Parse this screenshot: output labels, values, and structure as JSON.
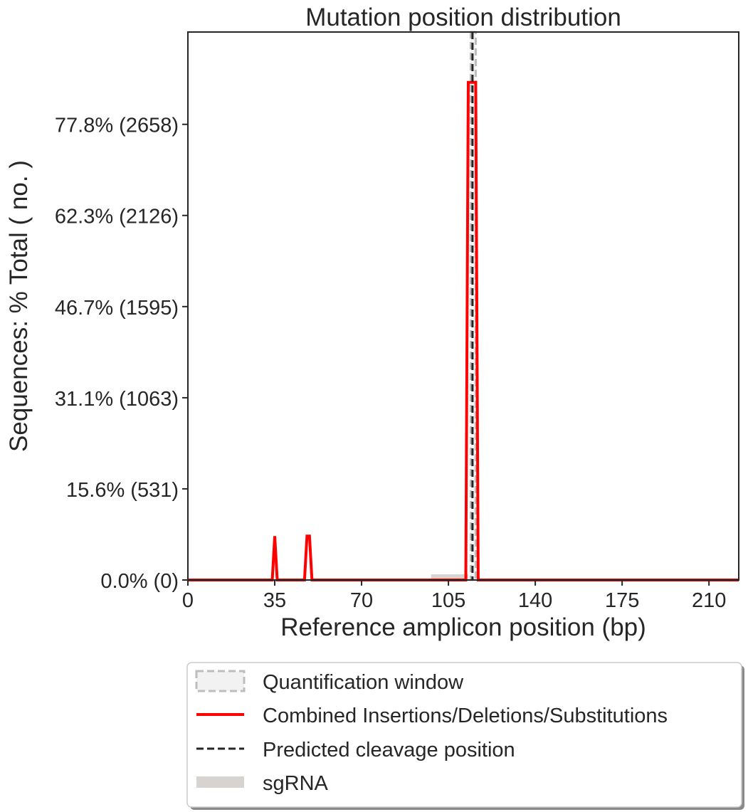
{
  "chart_data": {
    "type": "line",
    "title": "Mutation position distribution",
    "xlabel": "Reference amplicon position (bp)",
    "ylabel": "Sequences: % Total ( no. )",
    "xlim": [
      0,
      222
    ],
    "ylim": [
      0,
      93.6
    ],
    "x_ticks": [
      0,
      35,
      70,
      105,
      140,
      175,
      210
    ],
    "x_tick_labels": [
      "0",
      "35",
      "70",
      "105",
      "140",
      "175",
      "210"
    ],
    "y_ticks": [
      0,
      15.57,
      31.13,
      46.7,
      62.27,
      77.83
    ],
    "y_tick_labels": [
      "0.0% (0)",
      "15.6% (531)",
      "31.1% (1063)",
      "46.7% (1595)",
      "62.3% (2126)",
      "77.8% (2658)"
    ],
    "grid": false,
    "legend_position": "below plot",
    "series": [
      {
        "name": "Combined Insertions/Deletions/Substitutions",
        "color": "#ff0000",
        "points": [
          [
            0,
            0
          ],
          [
            34,
            0
          ],
          [
            35,
            7.5
          ],
          [
            36,
            0
          ],
          [
            47,
            0
          ],
          [
            48,
            7.5
          ],
          [
            49,
            7.5
          ],
          [
            50,
            0
          ],
          [
            112,
            0
          ],
          [
            113,
            85
          ],
          [
            116,
            85
          ],
          [
            117,
            0
          ],
          [
            222,
            0
          ]
        ]
      }
    ],
    "annotations": {
      "quantification_window": {
        "name": "Quantification window",
        "x": [
          114,
          116
        ]
      },
      "predicted_cleavage": {
        "name": "Predicted cleavage position",
        "x": 114.7
      },
      "sgrna": {
        "name": "sgRNA",
        "x": [
          98,
          113
        ]
      }
    },
    "legend": [
      {
        "key": "quant",
        "label": "Quantification window"
      },
      {
        "key": "combined",
        "label": "Combined Insertions/Deletions/Substitutions"
      },
      {
        "key": "cleavage",
        "label": "Predicted cleavage position"
      },
      {
        "key": "sgrna",
        "label": "sgRNA"
      }
    ]
  }
}
